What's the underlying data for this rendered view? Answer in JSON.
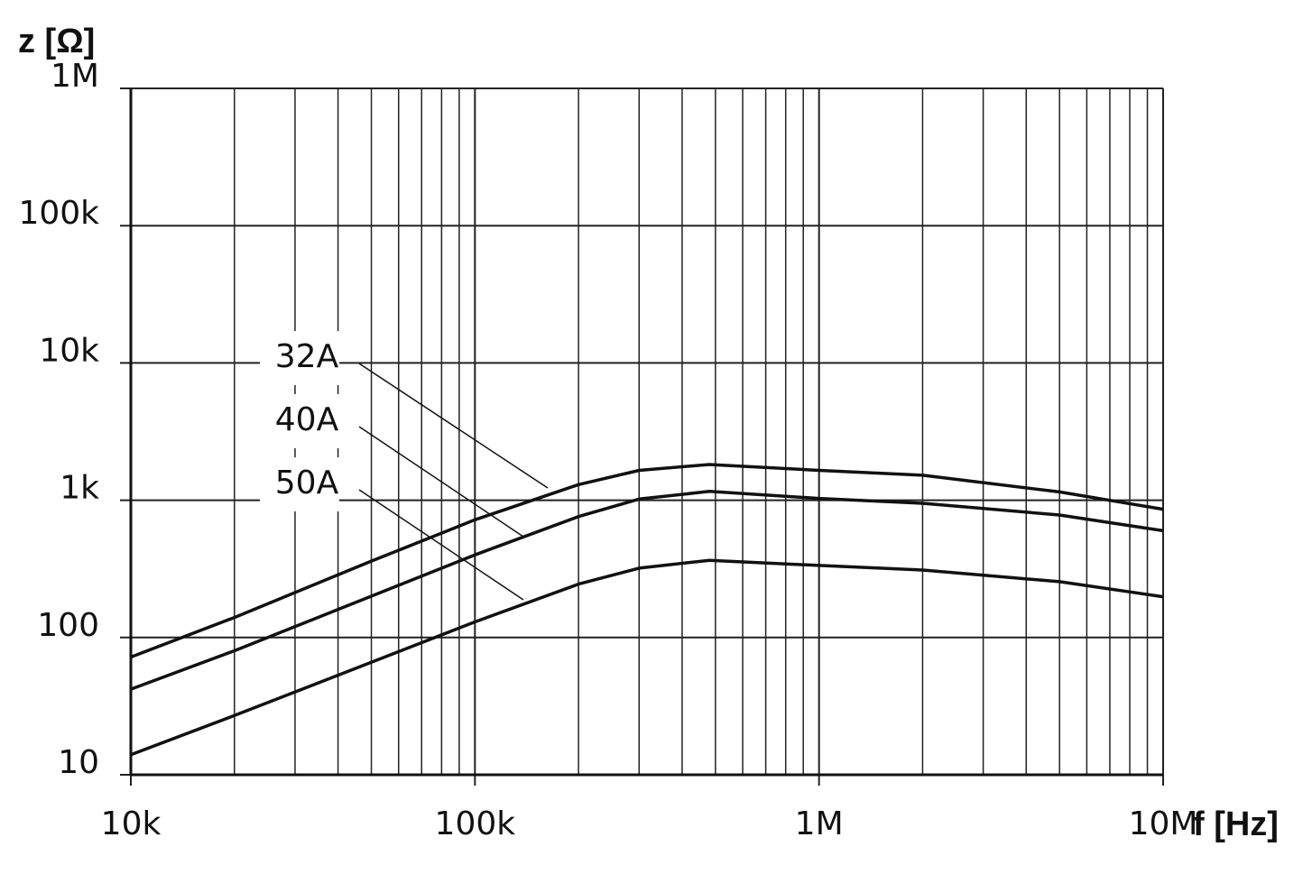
{
  "chart_data": {
    "type": "line",
    "x_label": "f [Hz]",
    "y_label": "z [Ω]",
    "xscale": "log",
    "yscale": "log",
    "grid": true,
    "color": "#111111",
    "x": [
      10000,
      20000,
      50000,
      100000,
      200000,
      300000,
      480000,
      1000000,
      2000000,
      5000000,
      10000000
    ],
    "series": [
      {
        "name": "32A",
        "color": "#111111",
        "values": [
          72,
          140,
          360,
          720,
          1300,
          1650,
          1820,
          1650,
          1520,
          1150,
          860
        ]
      },
      {
        "name": "40A",
        "color": "#111111",
        "values": [
          42,
          80,
          200,
          400,
          760,
          1020,
          1160,
          1030,
          950,
          780,
          600
        ]
      },
      {
        "name": "50A",
        "color": "#111111",
        "values": [
          14,
          27,
          66,
          130,
          245,
          320,
          365,
          335,
          310,
          255,
          198
        ]
      }
    ],
    "xlim": [
      10000,
      10000000
    ],
    "ylim": [
      10,
      1000000
    ],
    "xticks": [
      {
        "value": 10000,
        "label": "10k"
      },
      {
        "value": 100000,
        "label": "100k"
      },
      {
        "value": 1000000,
        "label": "1M"
      },
      {
        "value": 10000000,
        "label": "10M"
      }
    ],
    "xminorticks": [
      20000,
      30000,
      40000,
      50000,
      60000,
      70000,
      80000,
      90000,
      200000,
      300000,
      400000,
      500000,
      600000,
      700000,
      800000,
      900000,
      2000000,
      3000000,
      4000000,
      5000000,
      6000000,
      7000000,
      8000000,
      9000000
    ],
    "yticks": [
      10,
      100,
      {
        "value": 1000,
        "label": "1k"
      },
      {
        "value": 10000,
        "label": "10k"
      },
      {
        "value": 100000,
        "label": "100k"
      },
      {
        "value": 1000000,
        "label": "1M"
      }
    ]
  }
}
